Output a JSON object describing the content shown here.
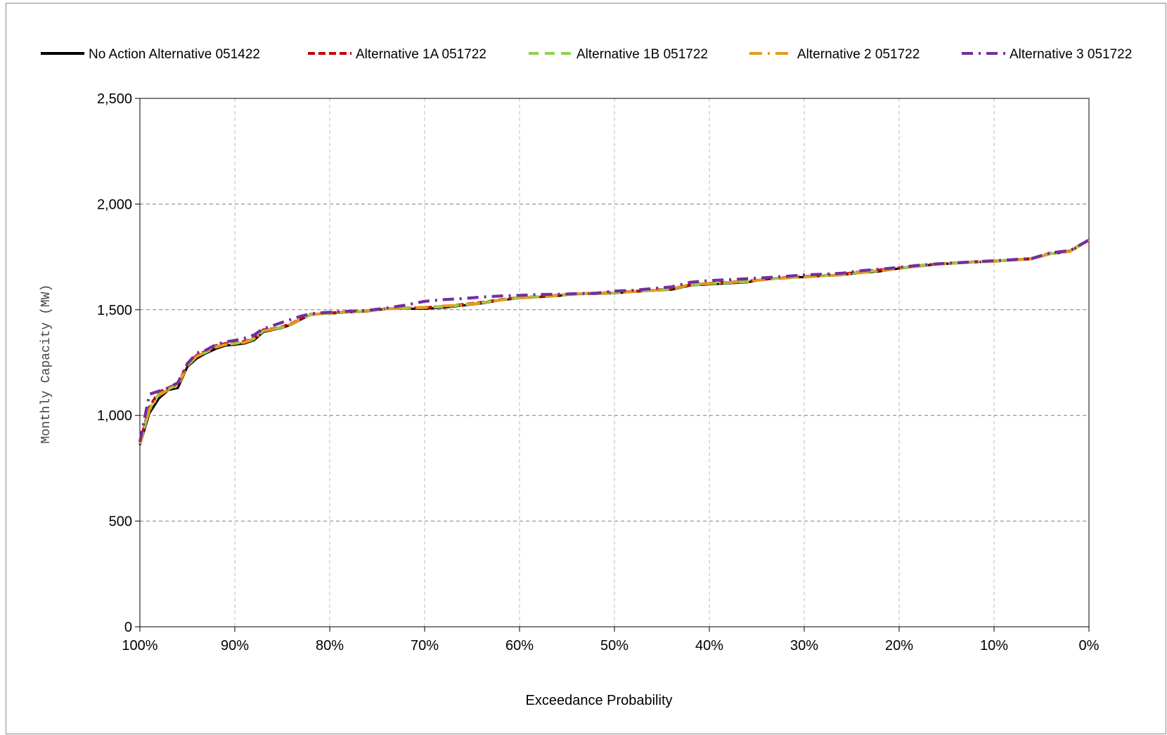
{
  "chart_data": {
    "type": "line",
    "xlabel": "Exceedance Probability",
    "ylabel": "Monthly Capacity (MW)",
    "xlim": [
      100,
      0
    ],
    "ylim": [
      0,
      2500
    ],
    "x_reversed": true,
    "x_ticks": [
      100,
      90,
      80,
      70,
      60,
      50,
      40,
      30,
      20,
      10,
      0
    ],
    "x_tick_labels": [
      "100%",
      "90%",
      "80%",
      "70%",
      "60%",
      "50%",
      "40%",
      "30%",
      "20%",
      "10%",
      "0%"
    ],
    "y_ticks": [
      0,
      500,
      1000,
      1500,
      2000,
      2500
    ],
    "y_tick_labels": [
      "0",
      "500",
      "1,000",
      "1,500",
      "2,000",
      "2,500"
    ],
    "grid": true,
    "legend_position": "top",
    "series": [
      {
        "name": "No Action Alternative 051422",
        "color": "#000000",
        "dash": "solid",
        "x": [
          100,
          99,
          98,
          97,
          96,
          95,
          94,
          93,
          92,
          91,
          90,
          89,
          88,
          87,
          86,
          85,
          84,
          83,
          82,
          81,
          80,
          78,
          76,
          74,
          72,
          70,
          68,
          66,
          64,
          62,
          60,
          58,
          56,
          54,
          52,
          50,
          48,
          46,
          44,
          42,
          40,
          38,
          36,
          34,
          32,
          30,
          28,
          26,
          24,
          22,
          20,
          18,
          16,
          14,
          12,
          10,
          8,
          6,
          4,
          2,
          0
        ],
        "y": [
          860,
          1010,
          1080,
          1120,
          1130,
          1230,
          1270,
          1295,
          1315,
          1330,
          1335,
          1340,
          1355,
          1395,
          1405,
          1415,
          1430,
          1455,
          1475,
          1480,
          1482,
          1488,
          1492,
          1505,
          1505,
          1505,
          1510,
          1520,
          1530,
          1545,
          1555,
          1560,
          1565,
          1575,
          1575,
          1578,
          1585,
          1590,
          1595,
          1615,
          1620,
          1625,
          1630,
          1645,
          1650,
          1655,
          1660,
          1665,
          1675,
          1682,
          1695,
          1705,
          1715,
          1720,
          1725,
          1728,
          1735,
          1740,
          1765,
          1775,
          1830
        ]
      },
      {
        "name": "Alternative 1A 051722",
        "color": "#c00000",
        "dash": "10,5",
        "x": [
          100,
          99,
          98,
          97,
          96,
          95,
          94,
          93,
          92,
          91,
          90,
          89,
          88,
          87,
          86,
          85,
          84,
          83,
          82,
          81,
          80,
          78,
          76,
          74,
          72,
          70,
          68,
          66,
          64,
          62,
          60,
          58,
          56,
          54,
          52,
          50,
          48,
          46,
          44,
          42,
          40,
          38,
          36,
          34,
          32,
          30,
          28,
          26,
          24,
          22,
          20,
          18,
          16,
          14,
          12,
          10,
          8,
          6,
          4,
          2,
          0
        ],
        "y": [
          870,
          1040,
          1110,
          1130,
          1150,
          1240,
          1285,
          1305,
          1330,
          1340,
          1345,
          1350,
          1365,
          1405,
          1410,
          1420,
          1435,
          1460,
          1478,
          1482,
          1485,
          1490,
          1495,
          1505,
          1508,
          1510,
          1515,
          1525,
          1535,
          1548,
          1558,
          1562,
          1568,
          1575,
          1578,
          1582,
          1587,
          1592,
          1600,
          1618,
          1625,
          1630,
          1635,
          1645,
          1652,
          1658,
          1662,
          1668,
          1680,
          1688,
          1698,
          1708,
          1716,
          1722,
          1727,
          1730,
          1736,
          1742,
          1768,
          1778,
          1830
        ]
      },
      {
        "name": "Alternative 1B 051722",
        "color": "#92d050",
        "dash": "14,9",
        "x": [
          100,
          99,
          98,
          97,
          96,
          95,
          94,
          93,
          92,
          91,
          90,
          89,
          88,
          87,
          86,
          85,
          84,
          83,
          82,
          81,
          80,
          78,
          76,
          74,
          72,
          70,
          68,
          66,
          64,
          62,
          60,
          58,
          56,
          54,
          52,
          50,
          48,
          46,
          44,
          42,
          40,
          38,
          36,
          34,
          32,
          30,
          28,
          26,
          24,
          22,
          20,
          18,
          16,
          14,
          12,
          10,
          8,
          6,
          4,
          2,
          0
        ],
        "y": [
          865,
          1030,
          1100,
          1125,
          1145,
          1235,
          1280,
          1300,
          1325,
          1335,
          1340,
          1348,
          1362,
          1400,
          1408,
          1418,
          1432,
          1458,
          1476,
          1481,
          1484,
          1489,
          1494,
          1505,
          1507,
          1510,
          1514,
          1523,
          1533,
          1547,
          1557,
          1561,
          1567,
          1574,
          1577,
          1580,
          1586,
          1591,
          1598,
          1617,
          1623,
          1628,
          1633,
          1645,
          1651,
          1657,
          1661,
          1667,
          1678,
          1686,
          1697,
          1707,
          1716,
          1721,
          1726,
          1729,
          1736,
          1741,
          1766,
          1776,
          1830
        ]
      },
      {
        "name": "Alternative 2 051722",
        "color": "#e69a1a",
        "dash": "18,8,3,8",
        "x": [
          100,
          99,
          98,
          97,
          96,
          95,
          94,
          93,
          92,
          91,
          90,
          89,
          88,
          87,
          86,
          85,
          84,
          83,
          82,
          81,
          80,
          78,
          76,
          74,
          72,
          70,
          68,
          66,
          64,
          62,
          60,
          58,
          56,
          54,
          52,
          50,
          48,
          46,
          44,
          42,
          40,
          38,
          36,
          34,
          32,
          30,
          28,
          26,
          24,
          22,
          20,
          18,
          16,
          14,
          12,
          10,
          8,
          6,
          4,
          2,
          0
        ],
        "y": [
          865,
          1025,
          1095,
          1122,
          1140,
          1235,
          1280,
          1300,
          1322,
          1335,
          1340,
          1345,
          1360,
          1400,
          1408,
          1418,
          1432,
          1458,
          1476,
          1481,
          1484,
          1489,
          1494,
          1504,
          1508,
          1512,
          1518,
          1522,
          1532,
          1546,
          1556,
          1560,
          1566,
          1574,
          1577,
          1580,
          1586,
          1591,
          1598,
          1620,
          1624,
          1629,
          1634,
          1643,
          1650,
          1655,
          1660,
          1665,
          1676,
          1684,
          1696,
          1706,
          1715,
          1721,
          1726,
          1729,
          1735,
          1741,
          1766,
          1776,
          1830
        ]
      },
      {
        "name": "Alternative 3 051722",
        "color": "#7030a0",
        "dash": "16,8,3,8",
        "x": [
          100,
          99,
          98,
          97,
          96,
          95,
          94,
          93,
          92,
          91,
          90,
          89,
          88,
          87,
          86,
          85,
          84,
          83,
          82,
          81,
          80,
          78,
          76,
          74,
          72,
          70,
          68,
          66,
          64,
          62,
          60,
          58,
          56,
          54,
          52,
          50,
          48,
          46,
          44,
          42,
          40,
          38,
          36,
          34,
          32,
          30,
          28,
          26,
          24,
          22,
          20,
          18,
          16,
          14,
          12,
          10,
          8,
          6,
          4,
          2,
          0
        ],
        "y": [
          875,
          1100,
          1115,
          1130,
          1155,
          1245,
          1295,
          1310,
          1335,
          1348,
          1355,
          1365,
          1380,
          1410,
          1425,
          1440,
          1455,
          1470,
          1480,
          1485,
          1488,
          1493,
          1497,
          1508,
          1522,
          1540,
          1548,
          1553,
          1560,
          1565,
          1568,
          1572,
          1573,
          1576,
          1578,
          1588,
          1592,
          1600,
          1608,
          1630,
          1638,
          1642,
          1647,
          1652,
          1658,
          1665,
          1668,
          1673,
          1685,
          1692,
          1700,
          1710,
          1717,
          1722,
          1727,
          1732,
          1737,
          1743,
          1770,
          1780,
          1830
        ]
      }
    ]
  }
}
